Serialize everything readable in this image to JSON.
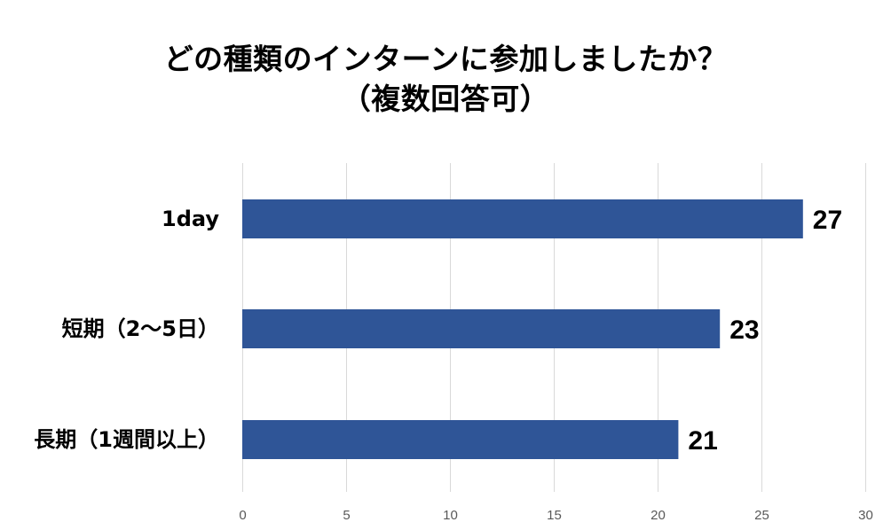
{
  "chart_data": {
    "type": "bar",
    "orientation": "horizontal",
    "title": "どの種類のインターンに参加しましたか？",
    "subtitle": "（複数回答可）",
    "categories": [
      "1day",
      "短期（2〜5日）",
      "長期（1週間以上）"
    ],
    "values": [
      27,
      23,
      21
    ],
    "xlim": [
      0,
      30
    ],
    "xticks": [
      "0",
      "5",
      "10",
      "15",
      "20",
      "25",
      "30"
    ],
    "grid": true,
    "bar_color": "#2F5597",
    "grid_color": "#D9D9D9"
  }
}
